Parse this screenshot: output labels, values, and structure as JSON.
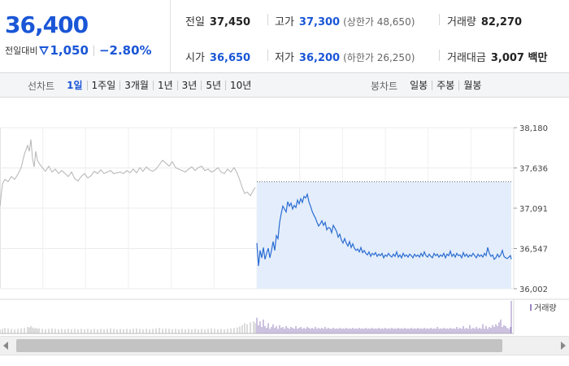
{
  "quote": {
    "price": "36,400",
    "change_label": "전일대비",
    "change_direction_icon": "down-triangle-icon",
    "change_amount": "1,050",
    "change_percent": "−2.80%",
    "prev_close_label": "전일",
    "prev_close": "37,450",
    "high_label": "고가",
    "high": "37,300",
    "upper_limit": "(상한가 48,650)",
    "volume_label": "거래량",
    "volume": "82,270",
    "open_label": "시가",
    "open": "36,650",
    "low_label": "저가",
    "low": "36,200",
    "lower_limit": "(하한가 26,250)",
    "trade_value_label": "거래대금",
    "trade_value": "3,007 백만"
  },
  "toolbar": {
    "line_chart_title": "선차트",
    "line_periods": [
      "1일",
      "1주일",
      "3개월",
      "1년",
      "3년",
      "5년",
      "10년"
    ],
    "active_period": "1일",
    "candle_chart_title": "봉차트",
    "candle_periods": [
      "일봉",
      "주봉",
      "월봉"
    ]
  },
  "colors": {
    "accent": "#1a56d6",
    "today_line": "#2a6dd2",
    "today_fill": "#e4edfb",
    "prev_line": "#b4b4b4",
    "volume_today": "#9a86c2",
    "volume_prev": "#b9b9b9"
  },
  "chart_data": {
    "type": "line",
    "ylim": [
      36002,
      38180
    ],
    "y_ticks": [
      "38,180",
      "37,636",
      "37,091",
      "36,547",
      "36,002"
    ],
    "prev_close_ref": 37450,
    "volume_legend": "거래량",
    "series": [
      {
        "x": [
          0,
          3,
          6,
          10,
          14,
          18,
          22,
          26,
          30,
          34,
          36,
          38,
          40,
          42,
          44,
          46,
          48,
          52,
          56,
          60,
          64,
          68,
          72,
          76,
          80,
          84,
          88,
          92,
          96,
          100,
          104,
          108,
          112,
          116,
          120,
          124,
          128,
          132,
          136,
          140,
          144,
          148,
          152,
          156,
          160,
          164,
          168,
          172,
          176,
          180,
          184,
          188,
          192,
          196,
          200,
          204,
          208,
          212,
          216,
          220,
          224,
          228,
          232,
          236,
          240,
          244,
          248,
          252,
          256,
          260,
          264,
          268,
          272,
          276,
          280,
          284,
          288,
          292,
          295,
          298,
          301,
          304,
          308,
          312,
          314
        ],
        "y": [
          37120,
          37420,
          37480,
          37450,
          37520,
          37480,
          37550,
          37640,
          37820,
          37940,
          37860,
          38020,
          37760,
          37650,
          37860,
          37740,
          37700,
          37640,
          37590,
          37660,
          37580,
          37620,
          37560,
          37600,
          37560,
          37520,
          37580,
          37490,
          37460,
          37520,
          37560,
          37500,
          37530,
          37590,
          37560,
          37610,
          37560,
          37580,
          37600,
          37560,
          37570,
          37580,
          37560,
          37600,
          37570,
          37620,
          37570,
          37640,
          37590,
          37650,
          37610,
          37590,
          37620,
          37680,
          37740,
          37700,
          37660,
          37720,
          37640,
          37620,
          37600,
          37580,
          37620,
          37650,
          37600,
          37640,
          37660,
          37600,
          37620,
          37580,
          37600,
          37640,
          37580,
          37560,
          37620,
          37580,
          37640,
          37560,
          37470,
          37370,
          37290,
          37310,
          37260,
          37340,
          37370
        ],
        "volume": [
          9,
          10,
          12,
          11,
          10,
          9,
          10,
          11,
          12,
          14,
          13,
          16,
          13,
          11,
          12,
          10,
          11,
          10,
          9,
          10,
          11,
          10,
          9,
          10,
          9,
          10,
          9,
          10,
          9,
          10,
          9,
          10,
          9,
          10,
          9,
          10,
          9,
          10,
          11,
          10,
          9,
          10,
          9,
          10,
          9,
          10,
          11,
          10,
          9,
          10,
          9,
          10,
          11,
          12,
          10,
          11,
          10,
          9,
          10,
          9,
          10,
          9,
          10,
          9,
          10,
          9,
          10,
          9,
          10,
          11,
          10,
          9,
          10,
          9,
          10,
          11,
          12,
          13,
          15,
          18,
          22,
          20,
          24,
          26,
          22
        ]
      },
      {
        "x": [
          316,
          318,
          320,
          322,
          324,
          326,
          328,
          330,
          332,
          334,
          336,
          338,
          340,
          342,
          344,
          346,
          348,
          350,
          352,
          354,
          356,
          358,
          360,
          362,
          364,
          366,
          368,
          370,
          372,
          374,
          376,
          378,
          380,
          382,
          384,
          386,
          388,
          390,
          392,
          394,
          396,
          398,
          400,
          402,
          404,
          406,
          408,
          410,
          412,
          414,
          416,
          418,
          420,
          422,
          424,
          426,
          428,
          430,
          432,
          434,
          436,
          438,
          440,
          442,
          444,
          446,
          448,
          450,
          452,
          454,
          456,
          458,
          460,
          462,
          464,
          466,
          468,
          470,
          472,
          474,
          476,
          478,
          480,
          482,
          484,
          486,
          488,
          490,
          492,
          494,
          496,
          498,
          500,
          502,
          504,
          506,
          508,
          510,
          512,
          514,
          516,
          518,
          520,
          522,
          524,
          526,
          528,
          530,
          532,
          534,
          536,
          538,
          540,
          542,
          544,
          546,
          548,
          550,
          552,
          554,
          556,
          558,
          560,
          562,
          564,
          566,
          568,
          570,
          572,
          574,
          576,
          578,
          580,
          582,
          584,
          586,
          588,
          590,
          592,
          594,
          596,
          598,
          600,
          602,
          604,
          606,
          608,
          610,
          612,
          614,
          616,
          618,
          620,
          622,
          624,
          626,
          628,
          629
        ],
        "y": [
          36620,
          36310,
          36520,
          36420,
          36560,
          36400,
          36480,
          36550,
          36420,
          36520,
          36640,
          36520,
          36720,
          36680,
          36900,
          37020,
          37120,
          37080,
          37040,
          37180,
          37120,
          37160,
          37080,
          37130,
          37100,
          37200,
          37150,
          37220,
          37170,
          37250,
          37230,
          37280,
          37180,
          37120,
          37050,
          37000,
          36960,
          36900,
          36850,
          36880,
          36920,
          36860,
          36900,
          36800,
          36830,
          36820,
          36760,
          36860,
          36820,
          36780,
          36700,
          36740,
          36660,
          36620,
          36680,
          36620,
          36580,
          36640,
          36560,
          36610,
          36550,
          36520,
          36540,
          36500,
          36560,
          36490,
          36520,
          36480,
          36460,
          36500,
          36440,
          36480,
          36460,
          36490,
          36440,
          36470,
          36450,
          36480,
          36420,
          36460,
          36440,
          36480,
          36450,
          36430,
          36470,
          36440,
          36500,
          36430,
          36460,
          36420,
          36480,
          36440,
          36460,
          36430,
          36470,
          36450,
          36420,
          36470,
          36440,
          36460,
          36430,
          36480,
          36440,
          36500,
          36450,
          36430,
          36470,
          36440,
          36420,
          36480,
          36450,
          36470,
          36430,
          36460,
          36440,
          36480,
          36420,
          36470,
          36450,
          36510,
          36440,
          36470,
          36430,
          36480,
          36450,
          36460,
          36420,
          36490,
          36440,
          36470,
          36430,
          36460,
          36440,
          36480,
          36450,
          36420,
          36470,
          36440,
          36460,
          36430,
          36480,
          36450,
          36560,
          36480,
          36440,
          36460,
          36400,
          36420,
          36470,
          36430,
          36460,
          36520,
          36440,
          36420,
          36410,
          36430,
          36450,
          36400
        ],
        "volume": [
          34,
          18,
          26,
          14,
          30,
          16,
          12,
          22,
          10,
          14,
          20,
          12,
          16,
          10,
          18,
          12,
          14,
          10,
          16,
          12,
          10,
          14,
          12,
          10,
          16,
          10,
          12,
          14,
          10,
          12,
          10,
          14,
          12,
          10,
          12,
          10,
          14,
          10,
          12,
          10,
          12,
          10,
          14,
          10,
          12,
          10,
          10,
          12,
          10,
          11,
          10,
          12,
          10,
          11,
          10,
          12,
          10,
          11,
          10,
          12,
          10,
          11,
          10,
          12,
          10,
          11,
          10,
          12,
          10,
          11,
          10,
          12,
          10,
          11,
          10,
          12,
          10,
          11,
          10,
          12,
          10,
          11,
          10,
          12,
          10,
          11,
          10,
          12,
          10,
          11,
          10,
          12,
          10,
          11,
          10,
          12,
          10,
          11,
          10,
          12,
          10,
          11,
          10,
          12,
          10,
          11,
          10,
          12,
          10,
          11,
          10,
          14,
          10,
          11,
          10,
          12,
          10,
          11,
          10,
          12,
          10,
          11,
          10,
          14,
          10,
          12,
          10,
          16,
          10,
          12,
          10,
          18,
          10,
          12,
          10,
          14,
          10,
          12,
          10,
          20,
          10,
          16,
          10,
          14,
          12,
          18,
          14,
          20,
          16,
          24,
          30,
          14,
          18,
          16,
          12,
          10,
          14,
          70
        ]
      }
    ]
  }
}
